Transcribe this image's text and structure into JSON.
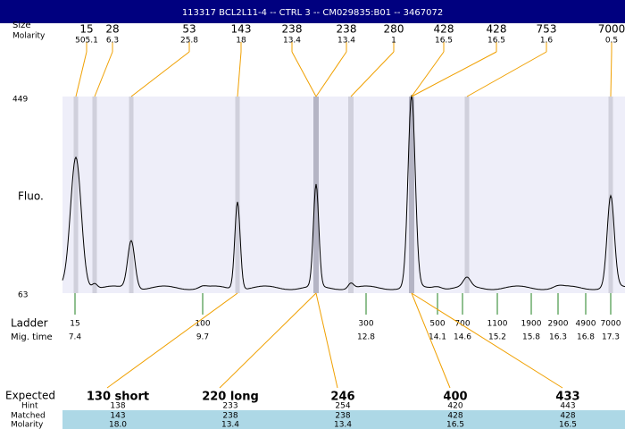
{
  "header": {
    "title": "113317  BCL2L11-4 -- CTRL 3 -- CM029835:B01 -- 3467072"
  },
  "peak_labels": {
    "size": "Size",
    "molarity": "Molarity"
  },
  "peaks": [
    {
      "size": "15",
      "molarity": "505.1"
    },
    {
      "size": "28",
      "molarity": "6.3"
    },
    {
      "size": "53",
      "molarity": "25.8"
    },
    {
      "size": "143",
      "molarity": "18"
    },
    {
      "size": "238",
      "molarity": "13.4"
    },
    {
      "size": "238",
      "molarity": "13.4"
    },
    {
      "size": "280",
      "molarity": "1"
    },
    {
      "size": "428",
      "molarity": "16.5"
    },
    {
      "size": "428",
      "molarity": "16.5"
    },
    {
      "size": "753",
      "molarity": "1.6"
    },
    {
      "size": "7000",
      "molarity": "0.5"
    }
  ],
  "y_axis": {
    "label": "Fluo.",
    "top": "449",
    "bottom": "63"
  },
  "ladder": {
    "label": "Ladder",
    "mig_label": "Mig. time",
    "items": [
      {
        "size": "15",
        "time": "7.4"
      },
      {
        "size": "100",
        "time": "9.7"
      },
      {
        "size": "300",
        "time": "12.8"
      },
      {
        "size": "500",
        "time": "14.1"
      },
      {
        "size": "700",
        "time": "14.6"
      },
      {
        "size": "1100",
        "time": "15.2"
      },
      {
        "size": "1900",
        "time": "15.8"
      },
      {
        "size": "2900",
        "time": "16.3"
      },
      {
        "size": "4900",
        "time": "16.8"
      },
      {
        "size": "7000",
        "time": "17.3"
      }
    ]
  },
  "expected": {
    "labels": {
      "expected": "Expected",
      "hint": "Hint",
      "matched": "Matched",
      "molarity": "Molarity"
    },
    "columns": [
      {
        "expected": "130 short",
        "hint": "138",
        "matched": "143",
        "molarity": "18.0"
      },
      {
        "expected": "220 long",
        "hint": "233",
        "matched": "238",
        "molarity": "13.4"
      },
      {
        "expected": "246",
        "hint": "254",
        "matched": "238",
        "molarity": "13.4"
      },
      {
        "expected": "400",
        "hint": "420",
        "matched": "428",
        "molarity": "16.5"
      },
      {
        "expected": "433",
        "hint": "443",
        "matched": "428",
        "molarity": "16.5"
      }
    ]
  }
}
